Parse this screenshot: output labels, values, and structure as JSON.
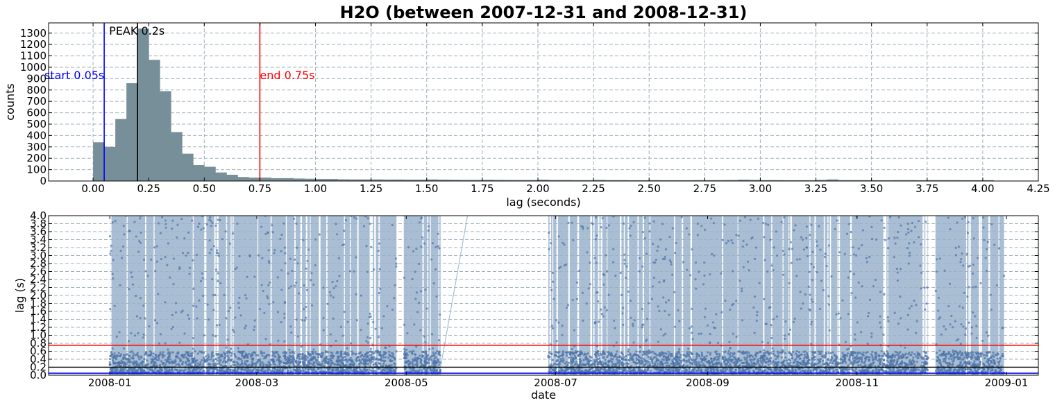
{
  "title": "H2O (between 2007-12-31 and 2008-12-31)",
  "chart_data": [
    {
      "type": "bar",
      "xlabel": "lag (seconds)",
      "ylabel": "counts",
      "xlim": [
        -0.2,
        4.25
      ],
      "ylim": [
        0,
        1390
      ],
      "bin_width": 0.05,
      "bin_starts": [
        0.0,
        0.05,
        0.1,
        0.15,
        0.2,
        0.25,
        0.3,
        0.35,
        0.4,
        0.45,
        0.5,
        0.55,
        0.6,
        0.65,
        0.7,
        0.75,
        0.8,
        0.85,
        0.9,
        0.95,
        1.0,
        1.05,
        1.1,
        1.15,
        1.2,
        1.25,
        1.3,
        1.35,
        1.4,
        1.45,
        1.5,
        1.55,
        1.6,
        1.65,
        1.7,
        1.75,
        1.8,
        1.85,
        1.9,
        1.95,
        2.0,
        2.05,
        2.1,
        2.15,
        2.2,
        2.25,
        2.3,
        2.35,
        2.4,
        2.45,
        2.5,
        2.55,
        2.6,
        2.65,
        2.7,
        2.75,
        2.8,
        2.85,
        2.9,
        2.95,
        3.0,
        3.05,
        3.1,
        3.15,
        3.2,
        3.25,
        3.3,
        3.35,
        3.4,
        3.45,
        3.5,
        3.55,
        3.6,
        3.65,
        3.7,
        3.75,
        3.8,
        3.85,
        3.9,
        3.95,
        4.0
      ],
      "counts": [
        340,
        300,
        545,
        860,
        1340,
        1065,
        790,
        430,
        240,
        140,
        125,
        75,
        55,
        35,
        30,
        30,
        25,
        25,
        22,
        20,
        18,
        18,
        15,
        14,
        14,
        14,
        13,
        13,
        12,
        12,
        14,
        12,
        11,
        10,
        10,
        11,
        10,
        9,
        9,
        9,
        12,
        9,
        9,
        8,
        8,
        10,
        8,
        8,
        7,
        7,
        8,
        7,
        7,
        7,
        8,
        8,
        8,
        9,
        12,
        10,
        8,
        8,
        7,
        7,
        7,
        10,
        14,
        8,
        8,
        8,
        7,
        7,
        8,
        8,
        7,
        8,
        8,
        8,
        7,
        7,
        7
      ],
      "xticks": [
        "0.00",
        "0.25",
        "0.50",
        "0.75",
        "1.00",
        "1.25",
        "1.50",
        "1.75",
        "2.00",
        "2.25",
        "2.50",
        "2.75",
        "3.00",
        "3.25",
        "3.50",
        "3.75",
        "4.00",
        "4.25"
      ],
      "yticks": [
        "0",
        "100",
        "200",
        "300",
        "400",
        "500",
        "600",
        "700",
        "800",
        "900",
        "1000",
        "1100",
        "1200",
        "1300"
      ],
      "grid": true,
      "bar_color": "#778f99",
      "markers": [
        {
          "label": "start 0.05s",
          "x": 0.05,
          "color": "#0000ff"
        },
        {
          "label": "PEAK 0.2s",
          "x": 0.2,
          "color": "#000000"
        },
        {
          "label": "end 0.75s",
          "x": 0.75,
          "color": "#ff0000"
        }
      ]
    },
    {
      "type": "scatter",
      "xlabel": "date",
      "ylabel": "lag (s)",
      "xlim": [
        "2007-12-07",
        "2009-01-14"
      ],
      "ylim": [
        0.0,
        4.0
      ],
      "xticks": [
        "2008-01",
        "2008-03",
        "2008-05",
        "2008-07",
        "2008-09",
        "2008-11",
        "2009-01"
      ],
      "yticks": [
        "0.0",
        "0.2",
        "0.4",
        "0.6",
        "0.8",
        "1.0",
        "1.2",
        "1.4",
        "1.6",
        "1.8",
        "2.0",
        "2.2",
        "2.4",
        "2.6",
        "2.8",
        "3.0",
        "3.2",
        "3.4",
        "3.6",
        "3.8",
        "4.0"
      ],
      "grid": true,
      "point_color": "#4f74a8",
      "fill_color": "#a9bed4",
      "data_ranges": [
        [
          "2008-01-01",
          "2008-04-27"
        ],
        [
          "2008-04-30",
          "2008-05-15"
        ],
        [
          "2008-06-28",
          "2008-11-30"
        ],
        [
          "2008-12-03",
          "2008-12-31"
        ]
      ],
      "hlines": [
        {
          "y": 0.75,
          "color": "#ff0000"
        },
        {
          "y": 0.2,
          "color": "#000000"
        },
        {
          "y": 0.05,
          "color": "#0000ff"
        }
      ]
    }
  ]
}
